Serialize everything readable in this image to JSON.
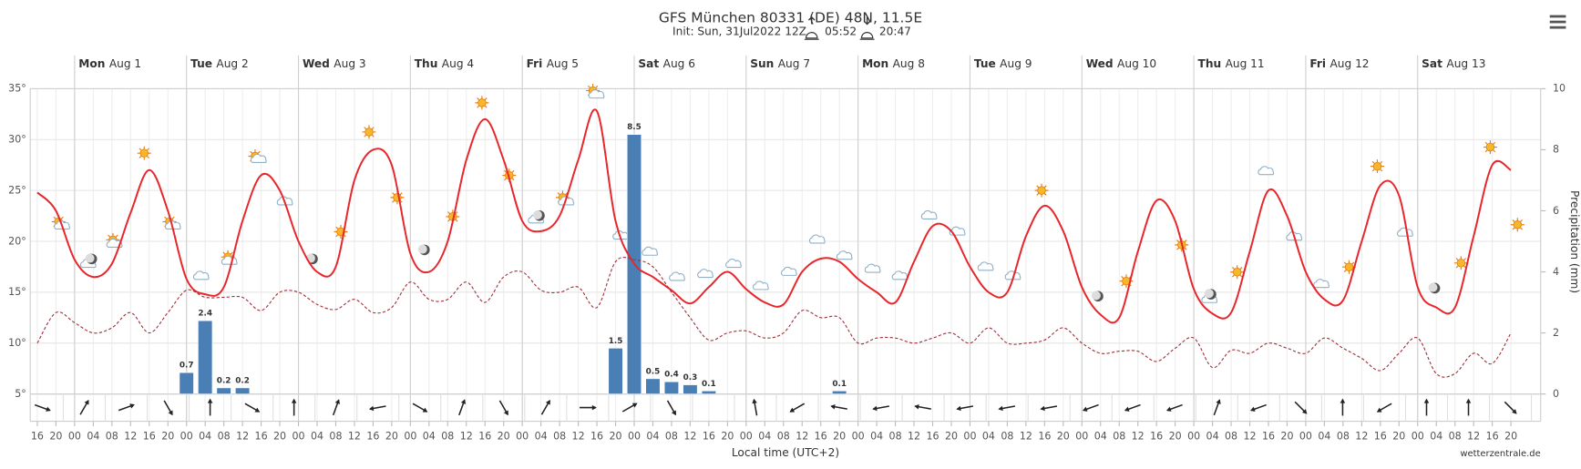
{
  "chart_data": {
    "type": "line",
    "title": "GFS München 80331 (DE) 48N, 11.5E",
    "subtitle": "Init: Sun, 31Jul2022 12Z",
    "sunrise": "05:52",
    "sunset": "20:47",
    "days": [
      {
        "weekday": "Mon",
        "date": "Aug 1"
      },
      {
        "weekday": "Tue",
        "date": "Aug 2"
      },
      {
        "weekday": "Wed",
        "date": "Aug 3"
      },
      {
        "weekday": "Thu",
        "date": "Aug 4"
      },
      {
        "weekday": "Fri",
        "date": "Aug 5"
      },
      {
        "weekday": "Sat",
        "date": "Aug 6"
      },
      {
        "weekday": "Sun",
        "date": "Aug 7"
      },
      {
        "weekday": "Mon",
        "date": "Aug 8"
      },
      {
        "weekday": "Tue",
        "date": "Aug 9"
      },
      {
        "weekday": "Wed",
        "date": "Aug 10"
      },
      {
        "weekday": "Thu",
        "date": "Aug 11"
      },
      {
        "weekday": "Fri",
        "date": "Aug 12"
      },
      {
        "weekday": "Sat",
        "date": "Aug 13"
      }
    ],
    "categories": [
      "16",
      "20",
      "00",
      "04",
      "08",
      "12",
      "16",
      "20",
      "00",
      "04",
      "08",
      "12",
      "16",
      "20",
      "00",
      "04",
      "08",
      "12",
      "16",
      "20",
      "00",
      "04",
      "08",
      "12",
      "16",
      "20",
      "00",
      "04",
      "08",
      "12",
      "16",
      "20",
      "00",
      "04",
      "08",
      "12",
      "16",
      "20",
      "00",
      "04",
      "08",
      "12",
      "16",
      "20",
      "00",
      "04",
      "08",
      "12",
      "16",
      "20",
      "00",
      "04",
      "08",
      "12",
      "16",
      "20",
      "00",
      "04",
      "08",
      "12",
      "16",
      "20",
      "00",
      "04",
      "08",
      "12",
      "16",
      "20",
      "00",
      "04",
      "08",
      "12",
      "16",
      "20",
      "00",
      "04",
      "08",
      "12",
      "16",
      "20"
    ],
    "series": [
      {
        "color": "#e8262b",
        "line_style": "solid",
        "values": [
          24.8,
          23,
          18.2,
          16.5,
          17.8,
          22.8,
          27,
          23,
          16.3,
          14.8,
          15.5,
          22,
          26.5,
          25,
          20,
          17,
          17.5,
          26,
          29,
          27.5,
          18.8,
          17,
          20,
          28,
          32,
          28,
          22,
          21,
          22.5,
          28,
          32.8,
          22,
          17.8,
          16.5,
          15.2,
          13.9,
          15.5,
          17,
          15.3,
          14,
          13.8,
          17,
          18.3,
          18,
          16.3,
          15,
          14,
          18,
          21.5,
          21,
          17.5,
          15,
          15,
          20.5,
          23.5,
          21,
          15.5,
          12.8,
          12.5,
          19,
          24,
          22,
          15.3,
          12.9,
          13,
          19,
          25,
          22.5,
          17,
          14.3,
          14.2,
          20,
          25.5,
          24.5,
          15.5,
          13.5,
          13.5,
          20.5,
          27.5,
          27
        ]
      },
      {
        "color": "#a0313a",
        "line_style": "dashed",
        "values": [
          10,
          13,
          12,
          11,
          11.5,
          13,
          11,
          13,
          15.2,
          14.5,
          14.5,
          14.5,
          13.2,
          15,
          15,
          13.8,
          13.3,
          14.3,
          13,
          13.5,
          16,
          14.3,
          14.3,
          16,
          14,
          16.5,
          17,
          15.2,
          15,
          15.5,
          13.5,
          18,
          18.2,
          17.5,
          15,
          12.5,
          10.3,
          11,
          11.2,
          10.5,
          11,
          13.2,
          12.5,
          12.5,
          10,
          10.5,
          10.5,
          10,
          10.5,
          11,
          10,
          11.5,
          10,
          10,
          10.3,
          11.5,
          10,
          9,
          9.2,
          9.2,
          8.2,
          9.5,
          10.5,
          7.6,
          9.3,
          9,
          10,
          9.5,
          9,
          10.5,
          9.5,
          8.5,
          7.3,
          9,
          10.5,
          7,
          7,
          9,
          8,
          11
        ]
      },
      {
        "color": "#4a7fb5",
        "type": "bar",
        "axis": "y2",
        "values": [
          null,
          null,
          null,
          null,
          null,
          null,
          null,
          null,
          0.7,
          2.4,
          0.2,
          0.2,
          null,
          null,
          null,
          null,
          null,
          null,
          null,
          null,
          null,
          null,
          null,
          null,
          null,
          null,
          null,
          null,
          null,
          null,
          null,
          1.5,
          8.5,
          0.5,
          0.4,
          0.3,
          0.1,
          null,
          null,
          null,
          null,
          null,
          null,
          0.1,
          null,
          null,
          null,
          null,
          null,
          null,
          null,
          null,
          null,
          null,
          null,
          null,
          null,
          null,
          null,
          null,
          null,
          null,
          null,
          null,
          null,
          null,
          null,
          null,
          null,
          null,
          null,
          null,
          null,
          null,
          null,
          null,
          null,
          null,
          null,
          null
        ]
      }
    ],
    "ylim": [
      5,
      35
    ],
    "yticks": [
      {
        "value": 5,
        "label": "5°"
      },
      {
        "value": 10,
        "label": "10°"
      },
      {
        "value": 15,
        "label": "15°"
      },
      {
        "value": 20,
        "label": "20°"
      },
      {
        "value": 25,
        "label": "25°"
      },
      {
        "value": 30,
        "label": "30°"
      },
      {
        "value": 35,
        "label": "35°"
      }
    ],
    "y2lim": [
      0,
      10
    ],
    "y2ticks": [
      0,
      2,
      4,
      6,
      8,
      10
    ],
    "y2label": "Precipitation (mm)",
    "xlabel": "Local time (UTC+2)",
    "credit": "wetterzentrale.de",
    "grid": true
  }
}
